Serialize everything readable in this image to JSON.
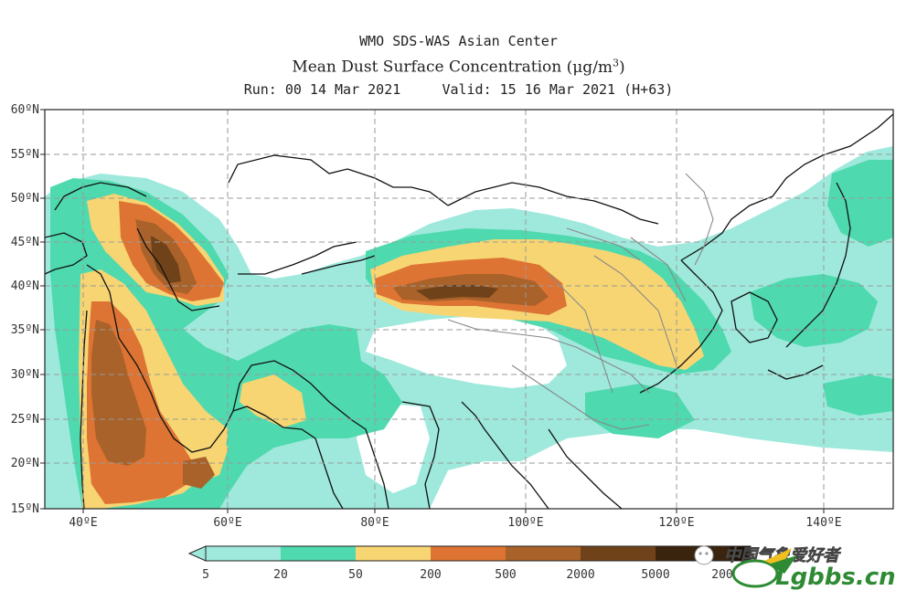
{
  "header": {
    "line1": "WMO SDS-WAS Asian Center",
    "line2": "Mean Dust Surface Concentration",
    "line2_unit": "(μg/m",
    "line2_unit_sup": "3",
    "line2_unit_close": ")",
    "line3_run": "Run: 00 14 Mar 2021",
    "line3_valid": "Valid: 15 16 Mar 2021 (H+63)"
  },
  "map": {
    "lon_labels": [
      "40ºE",
      "60ºE",
      "80ºE",
      "100ºE",
      "120ºE",
      "140ºE"
    ],
    "lat_labels": [
      "60ºN",
      "55ºN",
      "50ºN",
      "45ºN",
      "40ºN",
      "35ºN",
      "30ºN",
      "25ºN",
      "20ºN",
      "15ºN"
    ],
    "extent": {
      "lon_min": 35,
      "lon_max": 150,
      "lat_min": 15,
      "lat_max": 60
    }
  },
  "legend": {
    "levels": [
      "5",
      "20",
      "50",
      "200",
      "500",
      "2000",
      "5000",
      "200"
    ],
    "colors": [
      "#9ee9dc",
      "#4fd9ae",
      "#f7d573",
      "#dd7433",
      "#a8622a",
      "#704219",
      "#3b240e",
      "#1c1006"
    ]
  },
  "watermark": {
    "cn_text": "中国气象爱好者",
    "site_text": "Lgbbs.cn"
  }
}
